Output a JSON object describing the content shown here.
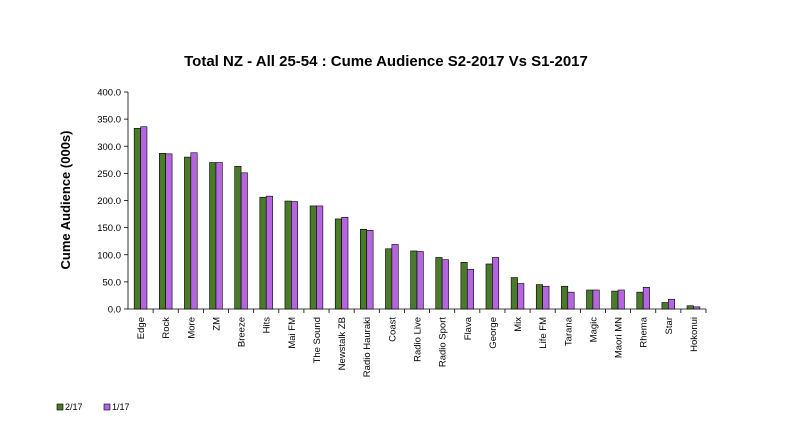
{
  "chart_data": {
    "type": "bar",
    "title": "Total NZ - All 25-54 : Cume Audience S2-2017 Vs S1-2017",
    "ylabel": "Cume Audience (000s)",
    "xlabel": "",
    "ylim": [
      0,
      400
    ],
    "yticks": [
      "0.0",
      "50.0",
      "100.0",
      "150.0",
      "200.0",
      "250.0",
      "300.0",
      "350.0",
      "400.0"
    ],
    "ytick_values": [
      0,
      50,
      100,
      150,
      200,
      250,
      300,
      350,
      400
    ],
    "grid": false,
    "legend_position": "bottom-left",
    "categories": [
      "Edge",
      "Rock",
      "More",
      "ZM",
      "Breeze",
      "Hits",
      "Mai FM",
      "The Sound",
      "Newstalk ZB",
      "Radio Hauraki",
      "Coast",
      "Radio Live",
      "Radio Sport",
      "Flava",
      "George",
      "Mix",
      "Life FM",
      "Tarana",
      "Magic",
      "Maori MN",
      "Rhema",
      "Star",
      "Hokonui"
    ],
    "series": [
      {
        "name": "2/17",
        "color": "#4a7a2a",
        "values": [
          333,
          287,
          280,
          270,
          263,
          206,
          199,
          190,
          166,
          147,
          111,
          107,
          95,
          86,
          83,
          58,
          45,
          42,
          35,
          33,
          31,
          12,
          6
        ]
      },
      {
        "name": "1/17",
        "color": "#b565e0",
        "values": [
          336,
          286,
          288,
          270,
          251,
          208,
          198,
          190,
          169,
          145,
          119,
          106,
          91,
          73,
          95,
          47,
          42,
          31,
          35,
          35,
          40,
          18,
          4
        ]
      }
    ]
  }
}
